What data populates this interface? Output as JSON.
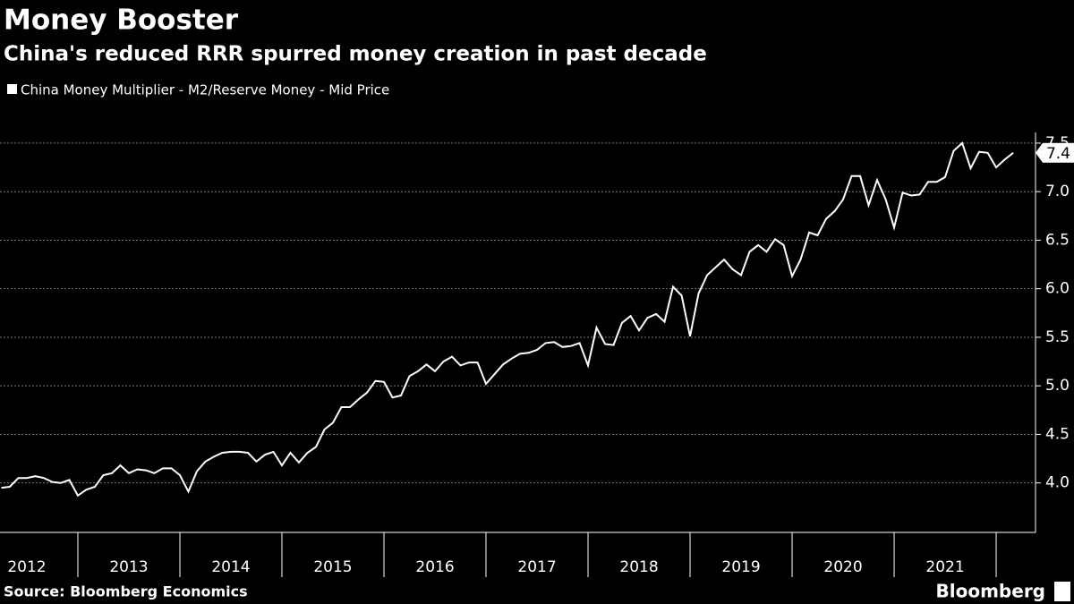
{
  "chart_data": {
    "type": "line",
    "title": "Money Booster",
    "subtitle": "China's reduced RRR spurred money creation in past decade",
    "source": "Source: Bloomberg Economics",
    "brand": "Bloomberg",
    "last_label": "7.4",
    "x": [
      2012.25,
      2012.333,
      2012.417,
      2012.5,
      2012.583,
      2012.667,
      2012.75,
      2012.833,
      2012.917,
      2013,
      2013.083,
      2013.167,
      2013.25,
      2013.333,
      2013.417,
      2013.5,
      2013.583,
      2013.667,
      2013.75,
      2013.833,
      2013.917,
      2014,
      2014.083,
      2014.167,
      2014.25,
      2014.333,
      2014.417,
      2014.5,
      2014.583,
      2014.667,
      2014.75,
      2014.833,
      2014.917,
      2015,
      2015.083,
      2015.167,
      2015.25,
      2015.333,
      2015.417,
      2015.5,
      2015.583,
      2015.667,
      2015.75,
      2015.833,
      2015.917,
      2016,
      2016.083,
      2016.167,
      2016.25,
      2016.333,
      2016.417,
      2016.5,
      2016.583,
      2016.667,
      2016.75,
      2016.833,
      2016.917,
      2017,
      2017.083,
      2017.167,
      2017.25,
      2017.333,
      2017.417,
      2017.5,
      2017.583,
      2017.667,
      2017.75,
      2017.833,
      2017.917,
      2018,
      2018.083,
      2018.167,
      2018.25,
      2018.333,
      2018.417,
      2018.5,
      2018.583,
      2018.667,
      2018.75,
      2018.833,
      2018.917,
      2019,
      2019.083,
      2019.167,
      2019.25,
      2019.333,
      2019.417,
      2019.5,
      2019.583,
      2019.667,
      2019.75,
      2019.833,
      2019.917,
      2020,
      2020.083,
      2020.167,
      2020.25,
      2020.333,
      2020.417,
      2020.5,
      2020.583,
      2020.667,
      2020.75,
      2020.833,
      2020.917,
      2021,
      2021.083,
      2021.167,
      2021.25,
      2021.333,
      2021.417,
      2021.5,
      2021.583,
      2021.667,
      2021.75,
      2021.833,
      2021.917,
      2022,
      2022.083,
      2022.167
    ],
    "series": [
      {
        "name": "China Money Multiplier - M2/Reserve Money - Mid Price",
        "color": "#ffffff",
        "values": [
          3.95,
          3.96,
          4.05,
          4.05,
          4.07,
          4.05,
          4.01,
          4.0,
          4.03,
          3.87,
          3.93,
          3.96,
          4.08,
          4.1,
          4.18,
          4.1,
          4.14,
          4.13,
          4.1,
          4.15,
          4.15,
          4.08,
          3.91,
          4.12,
          4.22,
          4.27,
          4.31,
          4.32,
          4.32,
          4.31,
          4.22,
          4.29,
          4.32,
          4.18,
          4.31,
          4.21,
          4.31,
          4.37,
          4.55,
          4.62,
          4.78,
          4.78,
          4.86,
          4.93,
          5.05,
          5.04,
          4.88,
          4.9,
          5.1,
          5.15,
          5.22,
          5.15,
          5.25,
          5.3,
          5.21,
          5.24,
          5.24,
          5.02,
          5.12,
          5.22,
          5.28,
          5.33,
          5.34,
          5.37,
          5.44,
          5.45,
          5.4,
          5.41,
          5.44,
          5.21,
          5.6,
          5.43,
          5.42,
          5.65,
          5.72,
          5.57,
          5.7,
          5.74,
          5.66,
          6.02,
          5.93,
          5.51,
          5.95,
          6.14,
          6.22,
          6.3,
          6.2,
          6.14,
          6.38,
          6.45,
          6.38,
          6.51,
          6.45,
          6.13,
          6.3,
          6.58,
          6.55,
          6.72,
          6.8,
          6.92,
          7.16,
          7.16,
          6.86,
          7.12,
          6.92,
          6.63,
          6.99,
          6.96,
          6.97,
          7.1,
          7.1,
          7.15,
          7.42,
          7.5,
          7.24,
          7.41,
          7.4,
          7.25,
          7.33,
          7.4
        ]
      }
    ],
    "xlim": [
      2012.237,
      2022.368
    ],
    "xgrid": [
      2013,
      2014,
      2015,
      2016,
      2017,
      2018,
      2019,
      2020,
      2021,
      2022
    ],
    "xticks": [
      {
        "value": 2012.5,
        "label": "2012"
      },
      {
        "value": 2013.5,
        "label": "2013"
      },
      {
        "value": 2014.5,
        "label": "2014"
      },
      {
        "value": 2015.5,
        "label": "2015"
      },
      {
        "value": 2016.5,
        "label": "2016"
      },
      {
        "value": 2017.5,
        "label": "2017"
      },
      {
        "value": 2018.5,
        "label": "2018"
      },
      {
        "value": 2019.5,
        "label": "2019"
      },
      {
        "value": 2020.5,
        "label": "2020"
      },
      {
        "value": 2021.5,
        "label": "2021"
      }
    ],
    "ylim": [
      3.49,
      7.61
    ],
    "yticks": [
      {
        "value": 4,
        "label": "4.0"
      },
      {
        "value": 4.5,
        "label": "4.5"
      },
      {
        "value": 5,
        "label": "5.0"
      },
      {
        "value": 5.5,
        "label": "5.5"
      },
      {
        "value": 6,
        "label": "6.0"
      },
      {
        "value": 6.5,
        "label": "6.5"
      },
      {
        "value": 7,
        "label": "7.0"
      },
      {
        "value": 7.5,
        "label": "7.5"
      }
    ],
    "grid": true
  }
}
